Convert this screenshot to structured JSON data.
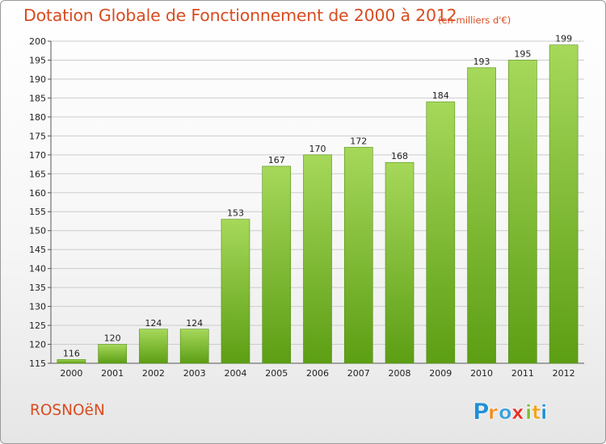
{
  "header": {
    "title": "Dotation Globale de Fonctionnement de 2000 à 2012",
    "subtitle": "(en milliers d'€)"
  },
  "footer": {
    "commune": "ROSNOëN",
    "logo_text": "Proxiti",
    "logo_letters": [
      {
        "ch": "P",
        "color": "#1f8fd6"
      },
      {
        "ch": "r",
        "color": "#f28c1e"
      },
      {
        "ch": "o",
        "color": "#3aa0dd"
      },
      {
        "ch": "x",
        "color": "#e8302a"
      },
      {
        "ch": "i",
        "color": "#7cbf2f"
      },
      {
        "ch": "t",
        "color": "#f2a41e"
      },
      {
        "ch": "i",
        "color": "#1f8fd6"
      }
    ]
  },
  "colors": {
    "title": "#d94b1f",
    "bar_light": "#a6d85a",
    "bar_dark": "#5c9e14",
    "grid": "#cccccc"
  },
  "chart_data": {
    "type": "bar",
    "title": "Dotation Globale de Fonctionnement de 2000 à 2012",
    "subtitle": "(en milliers d'€)",
    "xlabel": "",
    "ylabel": "",
    "categories": [
      "2000",
      "2001",
      "2002",
      "2003",
      "2004",
      "2005",
      "2006",
      "2007",
      "2008",
      "2009",
      "2010",
      "2011",
      "2012"
    ],
    "values": [
      116,
      120,
      124,
      124,
      153,
      167,
      170,
      172,
      168,
      184,
      193,
      195,
      199
    ],
    "ylim": [
      115,
      200
    ],
    "yticks": [
      115,
      120,
      125,
      130,
      135,
      140,
      145,
      150,
      155,
      160,
      165,
      170,
      175,
      180,
      185,
      190,
      195,
      200
    ],
    "grid": true,
    "legend": "none",
    "data_labels": true
  }
}
